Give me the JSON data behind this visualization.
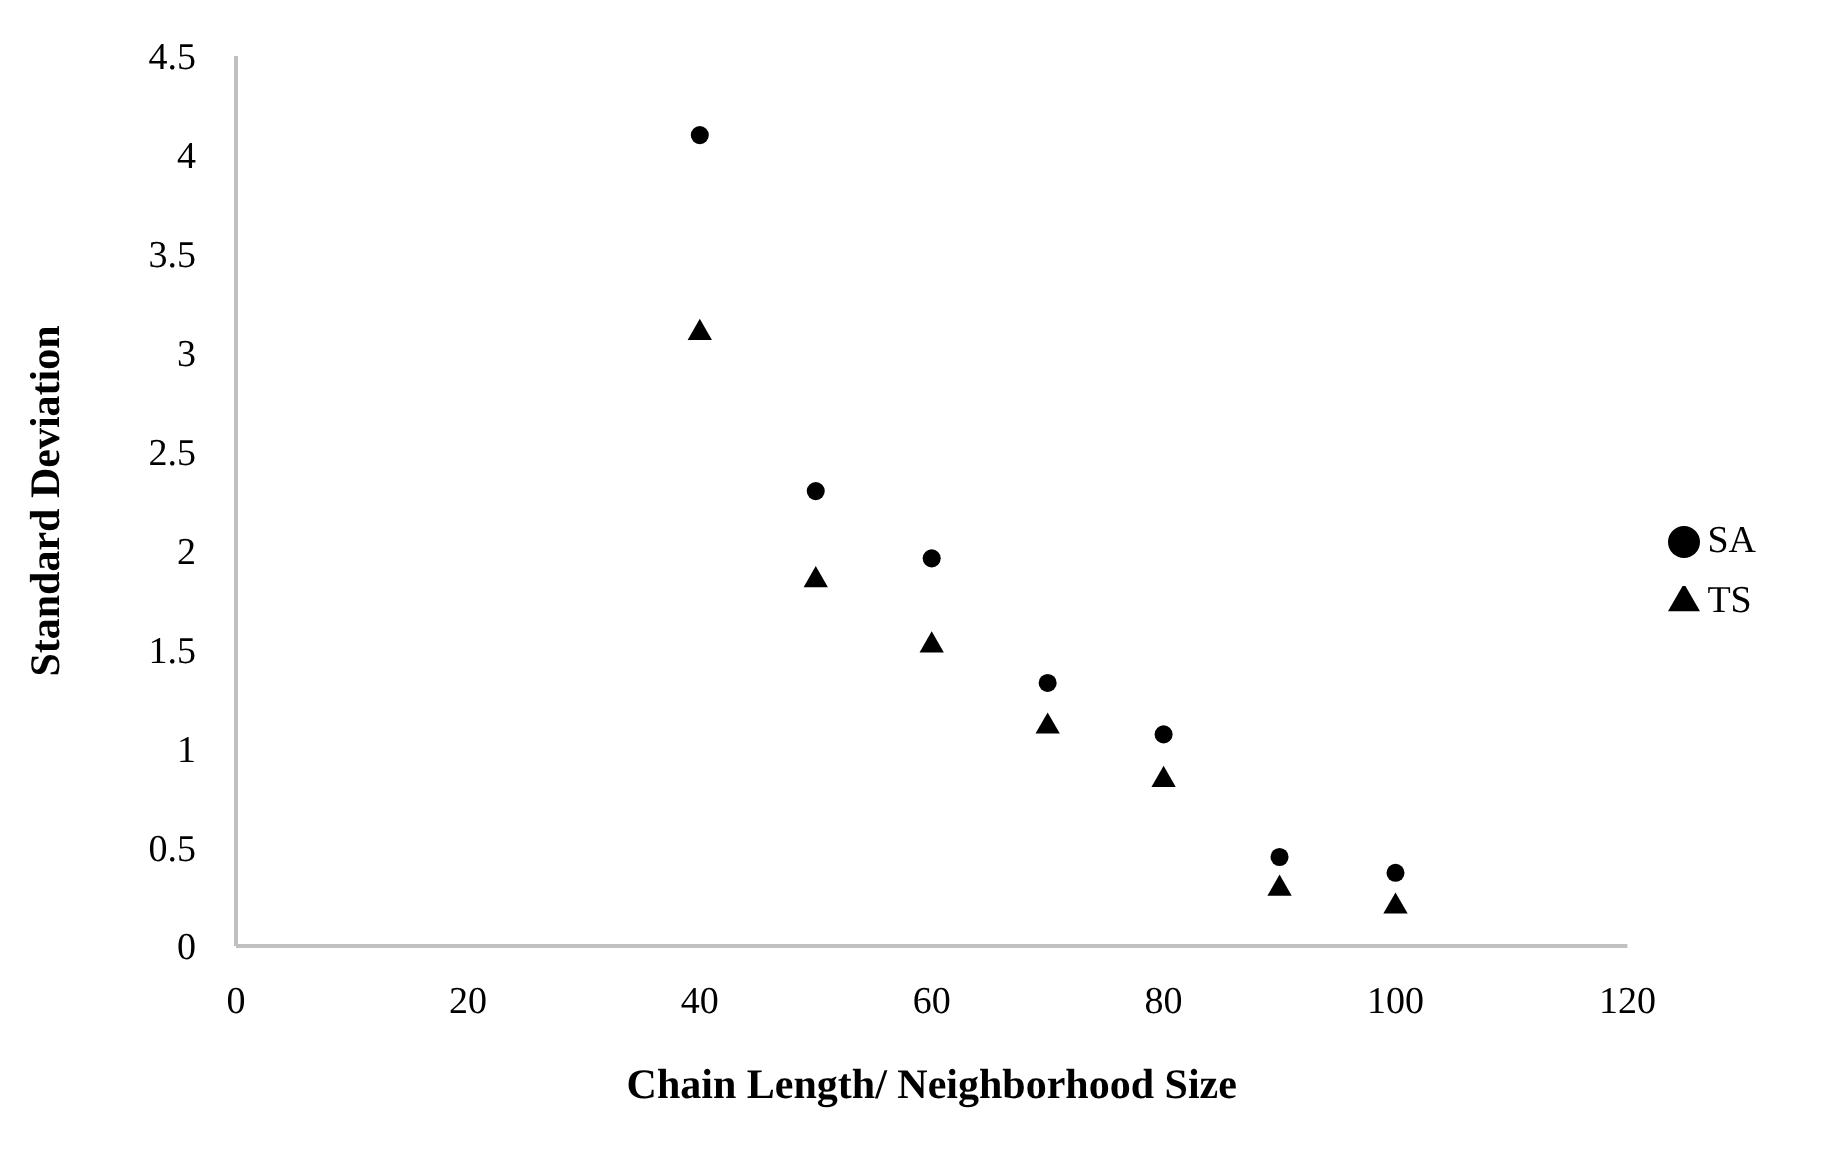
{
  "chart_data": {
    "type": "scatter",
    "xlabel": "Chain Length/ Neighborhood Size",
    "ylabel": "Standard Deviation",
    "x": [
      40,
      50,
      60,
      70,
      80,
      90,
      100
    ],
    "series": [
      {
        "name": "SA",
        "color": "#000000",
        "marker": "circle",
        "values": [
          4.1,
          2.3,
          1.96,
          1.33,
          1.07,
          0.45,
          0.37
        ]
      },
      {
        "name": "TS",
        "color": "#000000",
        "marker": "triangle",
        "values": [
          3.1,
          1.85,
          1.52,
          1.11,
          0.84,
          0.29,
          0.2
        ]
      }
    ],
    "xlim": [
      0,
      120
    ],
    "xticks": [
      0,
      20,
      40,
      60,
      80,
      100,
      120
    ],
    "ylim": [
      0,
      4.5
    ],
    "yticks": [
      0,
      0.5,
      1,
      1.5,
      2,
      2.5,
      3,
      3.5,
      4,
      4.5
    ],
    "grid": false,
    "legend": "right"
  }
}
